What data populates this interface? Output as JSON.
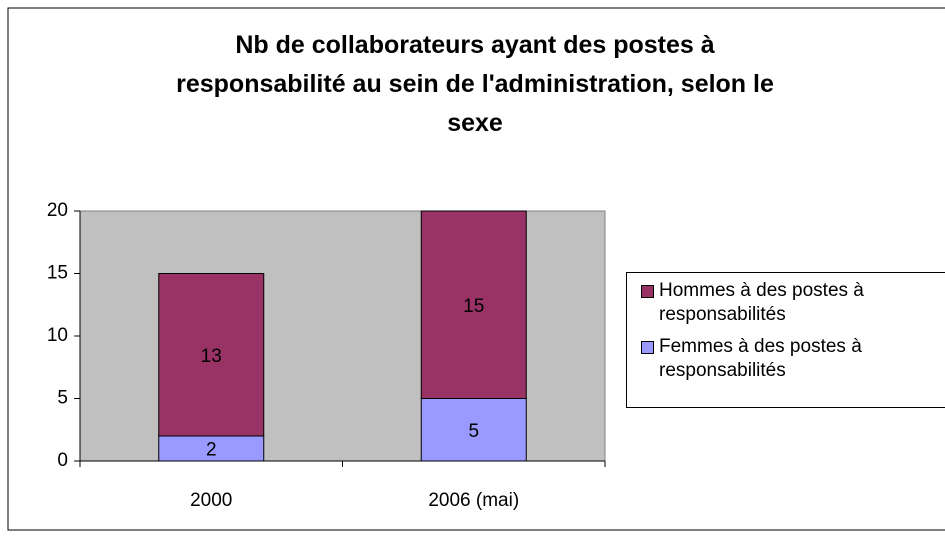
{
  "chart_data": {
    "type": "stacked-bar",
    "title": "Nb de collaborateurs ayant des postes à responsabilité au sein de l'administration, selon le sexe",
    "categories": [
      "2000",
      "2006 (mai)"
    ],
    "series": [
      {
        "name": "Femmes à des postes à responsabilités",
        "color": "#9999ff",
        "values": [
          2,
          5
        ]
      },
      {
        "name": "Hommes à des postes à responsabilités",
        "color": "#993366",
        "values": [
          13,
          15
        ]
      }
    ],
    "ylim": [
      0,
      20
    ],
    "yticks": [
      0,
      5,
      10,
      15,
      20
    ],
    "grid": false,
    "legend": "right"
  }
}
